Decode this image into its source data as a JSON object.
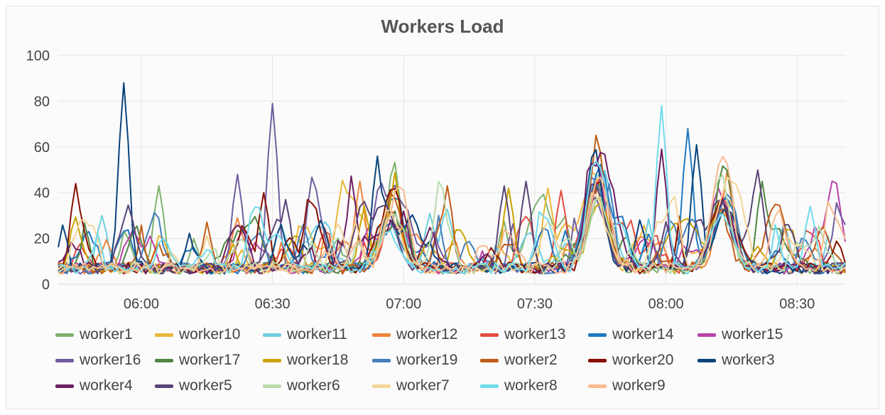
{
  "chart_data": {
    "type": "line",
    "title": "Workers Load",
    "xlabel": "",
    "ylabel": "",
    "ylim": [
      0,
      100
    ],
    "yticks": [
      "0",
      "20",
      "40",
      "60",
      "80",
      "100"
    ],
    "xrange": [
      "05:41",
      "08:41"
    ],
    "xticks": [
      "06:00",
      "06:30",
      "07:00",
      "07:30",
      "08:00",
      "08:30"
    ],
    "grid": true,
    "legend_position": "bottom",
    "baseline": 7,
    "shared_peaks": [
      {
        "time": "06:57",
        "value": 30
      },
      {
        "time": "07:44",
        "value": 44
      },
      {
        "time": "08:13",
        "value": 40
      }
    ],
    "series": [
      {
        "name": "worker1",
        "color": "#7eb26d",
        "peaks": [
          {
            "time": "06:04",
            "value": 43
          }
        ]
      },
      {
        "name": "worker10",
        "color": "#eab839",
        "peaks": [
          {
            "time": "07:33",
            "value": 42
          },
          {
            "time": "08:15",
            "value": 40
          }
        ]
      },
      {
        "name": "worker11",
        "color": "#6ed0e0",
        "peaks": [
          {
            "time": "05:51",
            "value": 30
          },
          {
            "time": "07:06",
            "value": 31
          },
          {
            "time": "08:27",
            "value": 27
          }
        ]
      },
      {
        "name": "worker12",
        "color": "#ef843c",
        "peaks": [
          {
            "time": "06:50",
            "value": 45
          },
          {
            "time": "08:14",
            "value": 50
          }
        ]
      },
      {
        "name": "worker13",
        "color": "#e24d42",
        "peaks": [
          {
            "time": "07:45",
            "value": 49
          },
          {
            "time": "07:36",
            "value": 41
          }
        ]
      },
      {
        "name": "worker14",
        "color": "#1f78c1",
        "peaks": [
          {
            "time": "08:05",
            "value": 68
          }
        ]
      },
      {
        "name": "worker15",
        "color": "#ba43a9",
        "peaks": [
          {
            "time": "06:02",
            "value": 21
          },
          {
            "time": "08:38",
            "value": 33
          }
        ]
      },
      {
        "name": "worker16",
        "color": "#705da0",
        "peaks": [
          {
            "time": "06:30",
            "value": 79
          },
          {
            "time": "06:22",
            "value": 48
          },
          {
            "time": "08:41",
            "value": 26
          }
        ]
      },
      {
        "name": "worker17",
        "color": "#508642",
        "peaks": [
          {
            "time": "08:22",
            "value": 45
          },
          {
            "time": "06:58",
            "value": 32
          }
        ]
      },
      {
        "name": "worker18",
        "color": "#cca300",
        "peaks": [
          {
            "time": "06:51",
            "value": 34
          },
          {
            "time": "07:24",
            "value": 42
          }
        ]
      },
      {
        "name": "worker19",
        "color": "#447ebc",
        "peaks": [
          {
            "time": "06:37",
            "value": 26
          },
          {
            "time": "07:47",
            "value": 44
          }
        ]
      },
      {
        "name": "worker2",
        "color": "#c15c17",
        "peaks": [
          {
            "time": "07:10",
            "value": 43
          }
        ]
      },
      {
        "name": "worker20",
        "color": "#890f02",
        "peaks": [
          {
            "time": "05:45",
            "value": 44
          },
          {
            "time": "06:28",
            "value": 40
          }
        ]
      },
      {
        "name": "worker3",
        "color": "#0a437c",
        "peaks": [
          {
            "time": "05:56",
            "value": 88
          },
          {
            "time": "06:54",
            "value": 56
          },
          {
            "time": "08:07",
            "value": 61
          }
        ]
      },
      {
        "name": "worker4",
        "color": "#6d1f62",
        "peaks": [
          {
            "time": "07:00",
            "value": 32
          },
          {
            "time": "07:59",
            "value": 59
          }
        ]
      },
      {
        "name": "worker5",
        "color": "#584477",
        "peaks": [
          {
            "time": "06:33",
            "value": 37
          },
          {
            "time": "07:23",
            "value": 43
          },
          {
            "time": "07:28",
            "value": 45
          }
        ]
      },
      {
        "name": "worker6",
        "color": "#b7dbab",
        "peaks": [
          {
            "time": "07:45",
            "value": 36
          }
        ]
      },
      {
        "name": "worker7",
        "color": "#f4d598",
        "peaks": [
          {
            "time": "06:49",
            "value": 27
          }
        ]
      },
      {
        "name": "worker8",
        "color": "#70dbed",
        "peaks": [
          {
            "time": "07:59",
            "value": 78
          },
          {
            "time": "08:33",
            "value": 34
          }
        ]
      },
      {
        "name": "worker9",
        "color": "#f9ba8f",
        "peaks": [
          {
            "time": "08:13",
            "value": 51
          }
        ]
      }
    ]
  }
}
